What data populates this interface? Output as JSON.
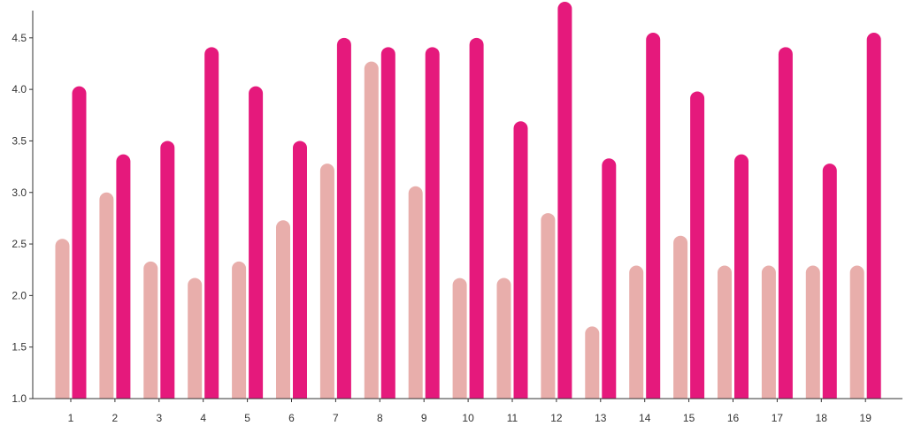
{
  "chart_data": {
    "type": "bar",
    "title": "",
    "xlabel": "",
    "ylabel": "",
    "categories": [
      "1",
      "2",
      "3",
      "4",
      "5",
      "6",
      "7",
      "8",
      "9",
      "10",
      "11",
      "12",
      "13",
      "14",
      "15",
      "16",
      "17",
      "18",
      "19"
    ],
    "ylim": [
      1.0,
      4.85
    ],
    "yticks": [
      "1.0",
      "1.5",
      "2.0",
      "2.5",
      "3.0",
      "3.5",
      "4.0",
      "4.5"
    ],
    "grid": false,
    "series": [
      {
        "color": "#e8aeab",
        "values": [
          2.55,
          3.0,
          2.33,
          2.17,
          2.33,
          2.73,
          3.28,
          4.27,
          3.06,
          2.17,
          2.17,
          2.8,
          1.7,
          2.29,
          2.58,
          2.29,
          2.29,
          2.29,
          2.29
        ]
      },
      {
        "color": "#e5197c",
        "values": [
          4.03,
          3.37,
          3.5,
          4.41,
          4.03,
          3.5,
          4.5,
          4.41,
          4.41,
          4.5,
          3.69,
          4.85,
          3.33,
          4.55,
          3.98,
          3.37,
          4.41,
          3.28,
          4.55
        ]
      }
    ]
  }
}
